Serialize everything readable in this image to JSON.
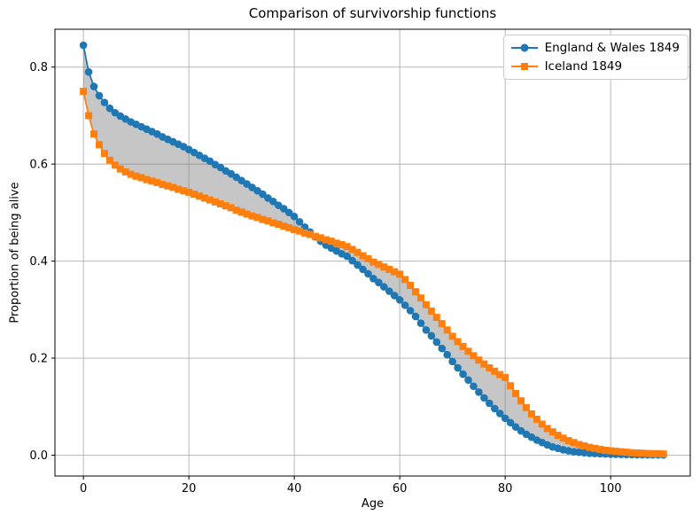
{
  "chart_data": {
    "type": "line",
    "title": "Comparison of survivorship functions",
    "xlabel": "Age",
    "ylabel": "Proportion of being alive",
    "xlim": [
      -5.4,
      115.1
    ],
    "ylim": [
      -0.043,
      0.878
    ],
    "grid": true,
    "grid_color": "#b0b0b0",
    "background_color": "#ffffff",
    "legend_position": "upper right",
    "xticks": [
      0,
      20,
      40,
      60,
      80,
      100
    ],
    "xtick_labels": [
      "0",
      "20",
      "40",
      "60",
      "80",
      "100"
    ],
    "yticks": [
      0.0,
      0.2,
      0.4,
      0.6,
      0.8
    ],
    "ytick_labels": [
      "0.0",
      "0.2",
      "0.4",
      "0.6",
      "0.8"
    ],
    "fill_between": {
      "color": "#808080",
      "opacity": 0.45,
      "description": "shaded gap between the two survivorship curves"
    },
    "x": [
      0,
      1,
      2,
      3,
      4,
      5,
      6,
      7,
      8,
      9,
      10,
      11,
      12,
      13,
      14,
      15,
      16,
      17,
      18,
      19,
      20,
      21,
      22,
      23,
      24,
      25,
      26,
      27,
      28,
      29,
      30,
      31,
      32,
      33,
      34,
      35,
      36,
      37,
      38,
      39,
      40,
      41,
      42,
      43,
      44,
      45,
      46,
      47,
      48,
      49,
      50,
      51,
      52,
      53,
      54,
      55,
      56,
      57,
      58,
      59,
      60,
      61,
      62,
      63,
      64,
      65,
      66,
      67,
      68,
      69,
      70,
      71,
      72,
      73,
      74,
      75,
      76,
      77,
      78,
      79,
      80,
      81,
      82,
      83,
      84,
      85,
      86,
      87,
      88,
      89,
      90,
      91,
      92,
      93,
      94,
      95,
      96,
      97,
      98,
      99,
      100,
      101,
      102,
      103,
      104,
      105,
      106,
      107,
      108,
      109,
      110
    ],
    "series": [
      {
        "name": "England & Wales 1849",
        "color": "#1f77b4",
        "marker": "circle",
        "values": [
          0.845,
          0.79,
          0.76,
          0.741,
          0.727,
          0.715,
          0.706,
          0.699,
          0.693,
          0.687,
          0.682,
          0.677,
          0.672,
          0.667,
          0.662,
          0.656,
          0.651,
          0.646,
          0.641,
          0.636,
          0.63,
          0.624,
          0.618,
          0.612,
          0.606,
          0.599,
          0.593,
          0.586,
          0.58,
          0.573,
          0.566,
          0.559,
          0.552,
          0.545,
          0.538,
          0.53,
          0.523,
          0.515,
          0.508,
          0.5,
          0.492,
          0.481,
          0.47,
          0.46,
          0.45,
          0.441,
          0.433,
          0.427,
          0.421,
          0.415,
          0.41,
          0.401,
          0.392,
          0.383,
          0.374,
          0.364,
          0.356,
          0.347,
          0.338,
          0.329,
          0.32,
          0.309,
          0.298,
          0.286,
          0.272,
          0.258,
          0.246,
          0.233,
          0.22,
          0.207,
          0.193,
          0.18,
          0.167,
          0.155,
          0.142,
          0.13,
          0.118,
          0.107,
          0.096,
          0.086,
          0.076,
          0.067,
          0.058,
          0.05,
          0.043,
          0.037,
          0.031,
          0.026,
          0.021,
          0.017,
          0.014,
          0.011,
          0.009,
          0.007,
          0.006,
          0.005,
          0.004,
          0.0035,
          0.003,
          0.0025,
          0.002,
          0.0018,
          0.0016,
          0.0014,
          0.0012,
          0.001,
          0.0009,
          0.0008,
          0.0007,
          0.0006,
          0.0005
        ]
      },
      {
        "name": "Iceland 1849",
        "color": "#ff7f0e",
        "marker": "square",
        "values": [
          0.75,
          0.7,
          0.662,
          0.64,
          0.622,
          0.608,
          0.598,
          0.59,
          0.584,
          0.579,
          0.575,
          0.572,
          0.568,
          0.565,
          0.562,
          0.558,
          0.555,
          0.552,
          0.548,
          0.545,
          0.542,
          0.538,
          0.534,
          0.53,
          0.526,
          0.522,
          0.518,
          0.514,
          0.51,
          0.505,
          0.501,
          0.497,
          0.493,
          0.49,
          0.486,
          0.483,
          0.479,
          0.476,
          0.472,
          0.469,
          0.465,
          0.462,
          0.458,
          0.455,
          0.451,
          0.448,
          0.444,
          0.441,
          0.437,
          0.434,
          0.43,
          0.424,
          0.418,
          0.411,
          0.405,
          0.398,
          0.393,
          0.388,
          0.383,
          0.378,
          0.373,
          0.362,
          0.35,
          0.337,
          0.324,
          0.31,
          0.297,
          0.284,
          0.271,
          0.258,
          0.245,
          0.234,
          0.224,
          0.214,
          0.205,
          0.196,
          0.188,
          0.18,
          0.173,
          0.166,
          0.16,
          0.143,
          0.127,
          0.112,
          0.098,
          0.085,
          0.074,
          0.064,
          0.055,
          0.048,
          0.041,
          0.035,
          0.03,
          0.026,
          0.022,
          0.019,
          0.016,
          0.014,
          0.012,
          0.01,
          0.009,
          0.008,
          0.007,
          0.006,
          0.005,
          0.0045,
          0.004,
          0.0035,
          0.003,
          0.003,
          0.0025
        ]
      }
    ]
  }
}
